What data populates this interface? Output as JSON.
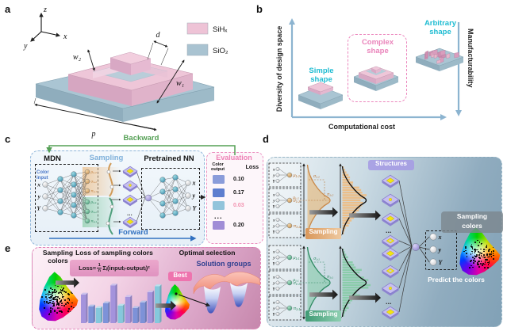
{
  "panel_labels": {
    "a": "a",
    "b": "b",
    "c": "c",
    "d": "d",
    "e": "e"
  },
  "panel_a": {
    "axis_z": "z",
    "axis_x": "x",
    "axis_y": "y",
    "dim_d": "d",
    "dim_w2": "w₂",
    "dim_w1": "w₁",
    "dim_p": "p",
    "legend": [
      {
        "label": "SiHₓ",
        "color": "#eec3d6"
      },
      {
        "label": "SiO₂",
        "color": "#a9c3d1"
      }
    ]
  },
  "panel_b": {
    "y_axis": "Diversity of design space",
    "x_axis": "Computational cost",
    "right_axis": "Manufacturability",
    "simple": [
      "Simple",
      "shape"
    ],
    "complex": [
      "Complex",
      "shape"
    ],
    "arbitrary": [
      "Arbitrary",
      "shape"
    ],
    "simple_color": "#1fbcd2",
    "complex_color": "#ea84bb",
    "arbitrary_color": "#1fbcd2"
  },
  "panel_c": {
    "backward": "Backward",
    "forward": "Forward",
    "mdn_title": "MDN",
    "sampling_title": "Sampling",
    "pretrained_title": "Pretrained NN",
    "color_input": [
      "Color",
      "input"
    ],
    "inputs": [
      "x",
      "y",
      "Y"
    ],
    "outputs": [
      "x",
      "y",
      "Y"
    ],
    "mdn_out_top": [
      "μ₁,₂",
      "σ₁,₂",
      "π₁,₂"
    ],
    "mdn_out_bottom": [
      "μ₁,₁",
      "σ₁,₁",
      "π₁,₁"
    ],
    "ellipsis": "...",
    "evaluation": {
      "title": "Evaluation",
      "col_color": [
        "Color",
        "output"
      ],
      "col_loss": "Loss",
      "rows": [
        {
          "color": "#8a9cda",
          "loss": "0.10",
          "highlight": false
        },
        {
          "color": "#5d7ecf",
          "loss": "0.17",
          "highlight": false
        },
        {
          "color": "#92c4db",
          "loss": "0.03",
          "highlight": true
        },
        {
          "color": "#a08dd6",
          "loss": "0.20",
          "highlight": false
        }
      ],
      "ellipsis": "..."
    }
  },
  "panel_d": {
    "io": [
      "x",
      "y",
      "Y"
    ],
    "outputs": [
      "x",
      "y",
      "Y"
    ],
    "top": {
      "params": [
        "μ₁,₂",
        "σ₁,₂",
        "π₁,₂"
      ],
      "gauss_sigma": "σ₁,₂",
      "gauss_mu": "μ₁,₂",
      "gauss_pi": "π₁,₂",
      "sampling": "Sampling"
    },
    "bottom": {
      "params": [
        "μ₁,₁",
        "σ₁,₁",
        "π₁,₁"
      ],
      "gauss_sigma": "σ₁,₁",
      "gauss_mu": "μ₁,₁",
      "gauss_pi": "π₁,₁",
      "sampling": "Sampling"
    },
    "structures_label": "Structures",
    "sampling_colors": [
      "Sampling",
      "colors"
    ],
    "predict_label": "Predict the colors",
    "ellipsis": "..."
  },
  "panel_e": {
    "sampling_colors": [
      "Sampling",
      "colors"
    ],
    "loss_title": "Loss of sampling colors",
    "formula": {
      "pre": "Loss=",
      "num": "1",
      "den": "n",
      "rest": "Σᵢ(inputᵢ-outputᵢ)²"
    },
    "optimal_title": "Optimal selection",
    "best_label": "Best",
    "solution_label": "Solution groups",
    "bars": {
      "values": [
        0.72,
        0.42,
        0.38,
        0.5,
        0.95,
        0.44,
        0.66,
        0.38,
        0.52,
        0.78,
        0.93
      ],
      "colors": [
        "#a493dc",
        "#7d92d8",
        "#85c8dc",
        "#7d92d8",
        "#a493dc",
        "#85c8dc",
        "#a493dc",
        "#7d92d8",
        "#7d92d8",
        "#a493dc",
        "#85c8dc"
      ]
    }
  }
}
